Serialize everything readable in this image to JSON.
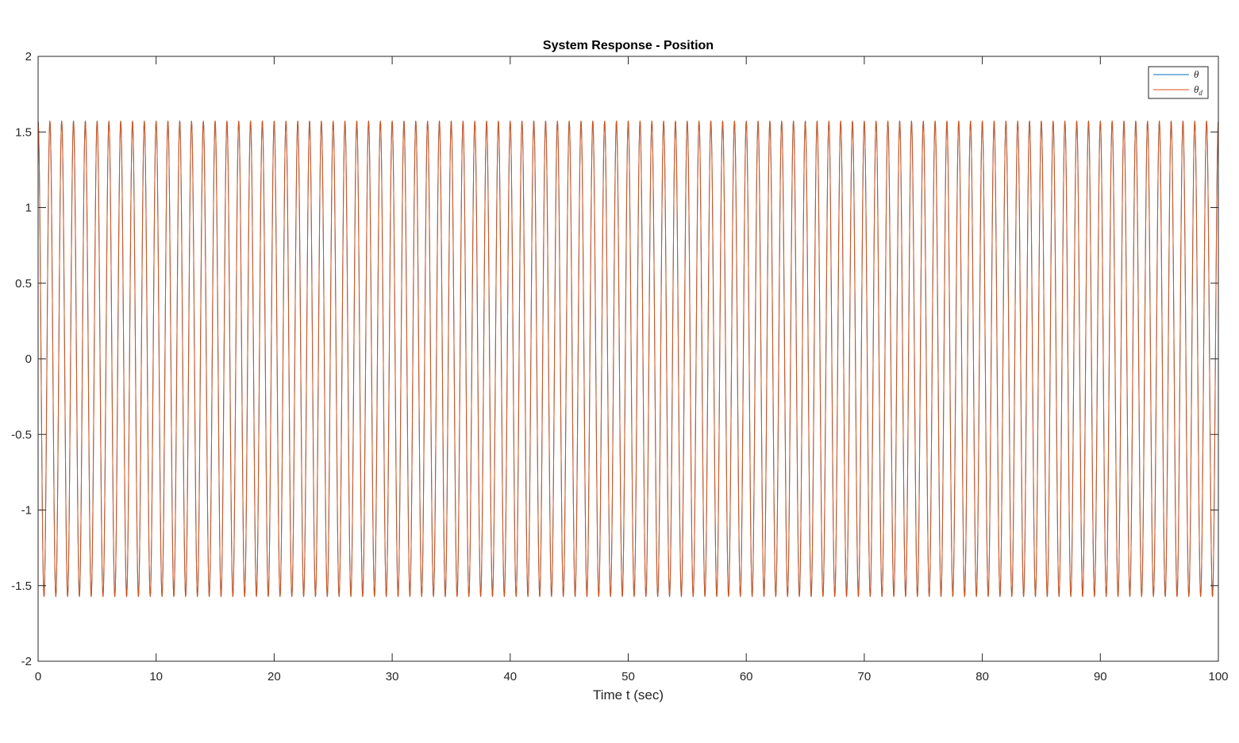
{
  "chart_data": {
    "type": "line",
    "title": "System Response - Position",
    "xlabel": "Time t (sec)",
    "ylabel": "",
    "xlim": [
      0,
      100
    ],
    "ylim": [
      -2,
      2
    ],
    "x_ticks": [
      0,
      10,
      20,
      30,
      40,
      50,
      60,
      70,
      80,
      90,
      100
    ],
    "y_ticks": [
      -2,
      -1.5,
      -1,
      -0.5,
      0,
      0.5,
      1,
      1.5,
      2
    ],
    "x_tick_labels": [
      "0",
      "10",
      "20",
      "30",
      "40",
      "50",
      "60",
      "70",
      "80",
      "90",
      "100"
    ],
    "y_tick_labels": [
      "-2",
      "-1.5",
      "-1",
      "-0.5",
      "0",
      "0.5",
      "1",
      "1.5",
      "2"
    ],
    "grid": false,
    "legend_position": "top-right",
    "series": [
      {
        "name": "θ",
        "color": "#0072BD",
        "function": "sine",
        "amplitude": 1.5708,
        "frequency_hz": 1.0,
        "phase_rad": 1.5708,
        "x_range": [
          0,
          100
        ]
      },
      {
        "name": "θd",
        "color": "#D95319",
        "function": "sine",
        "amplitude": 1.5708,
        "frequency_hz": 1.0,
        "phase_rad": 1.5708,
        "x_range": [
          0,
          100
        ]
      }
    ],
    "legend": {
      "entries": [
        {
          "symbol": "θ",
          "subscript": ""
        },
        {
          "symbol": "θ",
          "subscript": "d"
        }
      ]
    }
  }
}
